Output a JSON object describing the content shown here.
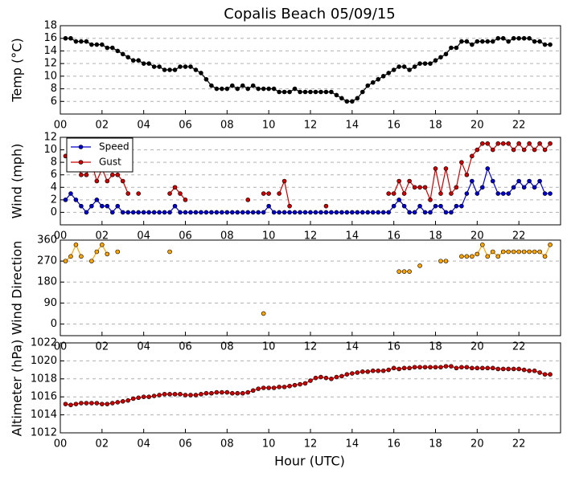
{
  "chart_data": [
    {
      "type": "line",
      "title": "Copalis Beach 05/09/15",
      "ylabel": "Temp (°C)",
      "color": "#000000",
      "x": [
        0.25,
        0.5,
        0.75,
        1,
        1.25,
        1.5,
        1.75,
        2,
        2.25,
        2.5,
        2.75,
        3,
        3.25,
        3.5,
        3.75,
        4,
        4.25,
        4.5,
        4.75,
        5,
        5.25,
        5.5,
        5.75,
        6,
        6.25,
        6.5,
        6.75,
        7,
        7.25,
        7.5,
        7.75,
        8,
        8.25,
        8.5,
        8.75,
        9,
        9.25,
        9.5,
        9.75,
        10,
        10.25,
        10.5,
        10.75,
        11,
        11.25,
        11.5,
        11.75,
        12,
        12.25,
        12.5,
        12.75,
        13,
        13.25,
        13.5,
        13.75,
        14,
        14.25,
        14.5,
        14.75,
        15,
        15.25,
        15.5,
        15.75,
        16,
        16.25,
        16.5,
        16.75,
        17,
        17.25,
        17.5,
        17.75,
        18,
        18.25,
        18.5,
        18.75,
        19,
        19.25,
        19.5,
        19.75,
        20,
        20.25,
        20.5,
        20.75,
        21,
        21.25,
        21.5,
        21.75,
        22,
        22.25,
        22.5,
        22.75,
        23,
        23.25,
        23.5
      ],
      "values": [
        16,
        16,
        15.5,
        15.5,
        15.5,
        15,
        15,
        15,
        14.5,
        14.5,
        14,
        13.5,
        13,
        12.5,
        12.5,
        12,
        12,
        11.5,
        11.5,
        11,
        11,
        11,
        11.5,
        11.5,
        11.5,
        11,
        10.5,
        9.5,
        8.5,
        8,
        8,
        8,
        8.5,
        8,
        8.5,
        8,
        8.5,
        8,
        8,
        8,
        8,
        7.5,
        7.5,
        7.5,
        8,
        7.5,
        7.5,
        7.5,
        7.5,
        7.5,
        7.5,
        7.5,
        7,
        6.5,
        6,
        6,
        6.5,
        7.5,
        8.5,
        9,
        9.5,
        10,
        10.5,
        11,
        11.5,
        11.5,
        11,
        11.5,
        12,
        12,
        12,
        12.5,
        13,
        13.5,
        14.5,
        14.5,
        15.5,
        15.5,
        15,
        15.5,
        15.5,
        15.5,
        15.5,
        16,
        16,
        15.5,
        16,
        16,
        16,
        16,
        15.5,
        15.5,
        15,
        15
      ],
      "xlim": [
        0,
        24
      ],
      "ylim": [
        4,
        18
      ],
      "yticks": [
        6,
        8,
        10,
        12,
        14,
        16,
        18
      ],
      "xticks": [
        {
          "value": 0,
          "label": "00"
        },
        {
          "value": 2,
          "label": "02"
        },
        {
          "value": 4,
          "label": "04"
        },
        {
          "value": 6,
          "label": "06"
        },
        {
          "value": 8,
          "label": "08"
        },
        {
          "value": 10,
          "label": "10"
        },
        {
          "value": 12,
          "label": "12"
        },
        {
          "value": 14,
          "label": "14"
        },
        {
          "value": 16,
          "label": "16"
        },
        {
          "value": 18,
          "label": "18"
        },
        {
          "value": 20,
          "label": "20"
        },
        {
          "value": 22,
          "label": "22"
        }
      ],
      "grid": true
    },
    {
      "type": "line",
      "ylabel": "Wind (mph)",
      "legend": "upper left",
      "x": [
        0.25,
        0.5,
        0.75,
        1,
        1.25,
        1.5,
        1.75,
        2,
        2.25,
        2.5,
        2.75,
        3,
        3.25,
        3.5,
        3.75,
        4,
        4.25,
        4.5,
        4.75,
        5,
        5.25,
        5.5,
        5.75,
        6,
        6.25,
        6.5,
        6.75,
        7,
        7.25,
        7.5,
        7.75,
        8,
        8.25,
        8.5,
        8.75,
        9,
        9.25,
        9.5,
        9.75,
        10,
        10.25,
        10.5,
        10.75,
        11,
        11.25,
        11.5,
        11.75,
        12,
        12.25,
        12.5,
        12.75,
        13,
        13.25,
        13.5,
        13.75,
        14,
        14.25,
        14.5,
        14.75,
        15,
        15.25,
        15.5,
        15.75,
        16,
        16.25,
        16.5,
        16.75,
        17,
        17.25,
        17.5,
        17.75,
        18,
        18.25,
        18.5,
        18.75,
        19,
        19.25,
        19.5,
        19.75,
        20,
        20.25,
        20.5,
        20.75,
        21,
        21.25,
        21.5,
        21.75,
        22,
        22.25,
        22.5,
        22.75,
        23,
        23.25,
        23.5
      ],
      "series": [
        {
          "name": "Speed",
          "color": "#0000cc",
          "values": [
            2,
            3,
            2,
            1,
            0,
            1,
            2,
            1,
            1,
            0,
            1,
            0,
            0,
            0,
            0,
            0,
            0,
            0,
            0,
            0,
            0,
            1,
            0,
            0,
            0,
            0,
            0,
            0,
            0,
            0,
            0,
            0,
            0,
            0,
            0,
            0,
            0,
            0,
            0,
            1,
            0,
            0,
            0,
            0,
            0,
            0,
            0,
            0,
            0,
            0,
            0,
            0,
            0,
            0,
            0,
            0,
            0,
            0,
            0,
            0,
            0,
            0,
            0,
            1,
            2,
            1,
            0,
            0,
            1,
            0,
            0,
            1,
            1,
            0,
            0,
            1,
            1,
            3,
            5,
            3,
            4,
            7,
            5,
            3,
            3,
            3,
            4,
            5,
            4,
            5,
            4,
            5,
            3,
            3
          ]
        },
        {
          "name": "Gust",
          "color": "#cc0000",
          "values": [
            9,
            null,
            8,
            6,
            6,
            8,
            5,
            7,
            5,
            6,
            6,
            5,
            3,
            null,
            3,
            null,
            null,
            null,
            null,
            null,
            3,
            4,
            3,
            2,
            null,
            null,
            null,
            null,
            null,
            null,
            null,
            null,
            null,
            null,
            null,
            2,
            null,
            null,
            3,
            3,
            null,
            3,
            5,
            1,
            null,
            null,
            null,
            null,
            null,
            null,
            1,
            null,
            null,
            null,
            null,
            null,
            null,
            null,
            null,
            null,
            null,
            null,
            3,
            3,
            5,
            3,
            5,
            4,
            4,
            4,
            2,
            7,
            3,
            7,
            3,
            4,
            8,
            6,
            9,
            10,
            11,
            11,
            10,
            11,
            11,
            11,
            10,
            11,
            10,
            11,
            10,
            11,
            10,
            11
          ]
        }
      ],
      "xlim": [
        0,
        24
      ],
      "ylim": [
        -2,
        12
      ],
      "yticks": [
        0,
        2,
        4,
        6,
        8,
        10,
        12
      ],
      "xticks": [
        {
          "value": 0,
          "label": "00"
        },
        {
          "value": 2,
          "label": "02"
        },
        {
          "value": 4,
          "label": "04"
        },
        {
          "value": 6,
          "label": "06"
        },
        {
          "value": 8,
          "label": "08"
        },
        {
          "value": 10,
          "label": "10"
        },
        {
          "value": 12,
          "label": "12"
        },
        {
          "value": 14,
          "label": "14"
        },
        {
          "value": 16,
          "label": "16"
        },
        {
          "value": 18,
          "label": "18"
        },
        {
          "value": 20,
          "label": "20"
        },
        {
          "value": 22,
          "label": "22"
        }
      ],
      "grid": true
    },
    {
      "type": "line",
      "ylabel": "Wind Direction",
      "color": "#ffa500",
      "x": [
        0.25,
        0.5,
        0.75,
        1,
        1.25,
        1.5,
        1.75,
        2,
        2.25,
        2.5,
        2.75,
        3,
        3.25,
        3.5,
        3.75,
        4,
        4.25,
        4.5,
        4.75,
        5,
        5.25,
        5.5,
        5.75,
        6,
        6.25,
        6.5,
        6.75,
        7,
        7.25,
        7.5,
        7.75,
        8,
        8.25,
        8.5,
        8.75,
        9,
        9.25,
        9.5,
        9.75,
        10,
        10.25,
        10.5,
        10.75,
        11,
        11.25,
        11.5,
        11.75,
        12,
        12.25,
        12.5,
        12.75,
        13,
        13.25,
        13.5,
        13.75,
        14,
        14.25,
        14.5,
        14.75,
        15,
        15.25,
        15.5,
        15.75,
        16,
        16.25,
        16.5,
        16.75,
        17,
        17.25,
        17.5,
        17.75,
        18,
        18.25,
        18.5,
        18.75,
        19,
        19.25,
        19.5,
        19.75,
        20,
        20.25,
        20.5,
        20.75,
        21,
        21.25,
        21.5,
        21.75,
        22,
        22.25,
        22.5,
        22.75,
        23,
        23.25,
        23.5
      ],
      "values": [
        270,
        290,
        340,
        290,
        null,
        270,
        310,
        340,
        300,
        null,
        310,
        null,
        null,
        null,
        null,
        null,
        null,
        null,
        null,
        null,
        310,
        null,
        null,
        null,
        null,
        null,
        null,
        null,
        null,
        null,
        null,
        null,
        null,
        null,
        null,
        null,
        null,
        null,
        45,
        null,
        null,
        null,
        null,
        null,
        null,
        null,
        null,
        null,
        null,
        null,
        null,
        null,
        null,
        null,
        null,
        null,
        null,
        null,
        null,
        null,
        null,
        null,
        null,
        null,
        225,
        225,
        225,
        null,
        250,
        null,
        null,
        null,
        270,
        270,
        null,
        null,
        290,
        290,
        290,
        300,
        340,
        290,
        310,
        290,
        310,
        310,
        310,
        310,
        310,
        310,
        310,
        310,
        290,
        340
      ],
      "xlim": [
        0,
        24
      ],
      "ylim": [
        -50,
        360
      ],
      "yticks": [
        0,
        90,
        180,
        270,
        360
      ],
      "xticks": [
        {
          "value": 0,
          "label": "00"
        },
        {
          "value": 2,
          "label": "02"
        },
        {
          "value": 4,
          "label": "04"
        },
        {
          "value": 6,
          "label": "06"
        },
        {
          "value": 8,
          "label": "08"
        },
        {
          "value": 10,
          "label": "10"
        },
        {
          "value": 12,
          "label": "12"
        },
        {
          "value": 14,
          "label": "14"
        },
        {
          "value": 16,
          "label": "16"
        },
        {
          "value": 18,
          "label": "18"
        },
        {
          "value": 20,
          "label": "20"
        },
        {
          "value": 22,
          "label": "22"
        }
      ],
      "grid": true
    },
    {
      "type": "line",
      "ylabel": "Altimeter (hPa)",
      "xlabel": "Hour (UTC)",
      "color": "#cc0000",
      "x": [
        0.25,
        0.5,
        0.75,
        1,
        1.25,
        1.5,
        1.75,
        2,
        2.25,
        2.5,
        2.75,
        3,
        3.25,
        3.5,
        3.75,
        4,
        4.25,
        4.5,
        4.75,
        5,
        5.25,
        5.5,
        5.75,
        6,
        6.25,
        6.5,
        6.75,
        7,
        7.25,
        7.5,
        7.75,
        8,
        8.25,
        8.5,
        8.75,
        9,
        9.25,
        9.5,
        9.75,
        10,
        10.25,
        10.5,
        10.75,
        11,
        11.25,
        11.5,
        11.75,
        12,
        12.25,
        12.5,
        12.75,
        13,
        13.25,
        13.5,
        13.75,
        14,
        14.25,
        14.5,
        14.75,
        15,
        15.25,
        15.5,
        15.75,
        16,
        16.25,
        16.5,
        16.75,
        17,
        17.25,
        17.5,
        17.75,
        18,
        18.25,
        18.5,
        18.75,
        19,
        19.25,
        19.5,
        19.75,
        20,
        20.25,
        20.5,
        20.75,
        21,
        21.25,
        21.5,
        21.75,
        22,
        22.25,
        22.5,
        22.75,
        23,
        23.25,
        23.5
      ],
      "values": [
        1015.2,
        1015.1,
        1015.2,
        1015.3,
        1015.3,
        1015.3,
        1015.3,
        1015.2,
        1015.2,
        1015.3,
        1015.4,
        1015.5,
        1015.6,
        1015.8,
        1015.9,
        1016.0,
        1016.0,
        1016.1,
        1016.2,
        1016.3,
        1016.3,
        1016.3,
        1016.3,
        1016.2,
        1016.2,
        1016.2,
        1016.3,
        1016.4,
        1016.4,
        1016.5,
        1016.5,
        1016.5,
        1016.4,
        1016.4,
        1016.4,
        1016.5,
        1016.7,
        1016.9,
        1017.0,
        1017.0,
        1017.0,
        1017.1,
        1017.1,
        1017.2,
        1017.3,
        1017.4,
        1017.5,
        1017.8,
        1018.1,
        1018.2,
        1018.1,
        1018.0,
        1018.2,
        1018.3,
        1018.5,
        1018.6,
        1018.7,
        1018.8,
        1018.8,
        1018.9,
        1018.9,
        1018.9,
        1019.0,
        1019.2,
        1019.1,
        1019.2,
        1019.2,
        1019.3,
        1019.3,
        1019.3,
        1019.3,
        1019.3,
        1019.3,
        1019.4,
        1019.4,
        1019.2,
        1019.3,
        1019.3,
        1019.2,
        1019.2,
        1019.2,
        1019.2,
        1019.2,
        1019.1,
        1019.1,
        1019.1,
        1019.1,
        1019.1,
        1019.0,
        1018.9,
        1018.9,
        1018.7,
        1018.5,
        1018.5
      ],
      "xlim": [
        0,
        24
      ],
      "ylim": [
        1012,
        1022
      ],
      "yticks": [
        1012,
        1014,
        1016,
        1018,
        1020,
        1022
      ],
      "xticks": [
        {
          "value": 0,
          "label": "00"
        },
        {
          "value": 2,
          "label": "02"
        },
        {
          "value": 4,
          "label": "04"
        },
        {
          "value": 6,
          "label": "06"
        },
        {
          "value": 8,
          "label": "08"
        },
        {
          "value": 10,
          "label": "10"
        },
        {
          "value": 12,
          "label": "12"
        },
        {
          "value": 14,
          "label": "14"
        },
        {
          "value": 16,
          "label": "16"
        },
        {
          "value": 18,
          "label": "18"
        },
        {
          "value": 20,
          "label": "20"
        },
        {
          "value": 22,
          "label": "22"
        }
      ],
      "grid": true
    }
  ]
}
